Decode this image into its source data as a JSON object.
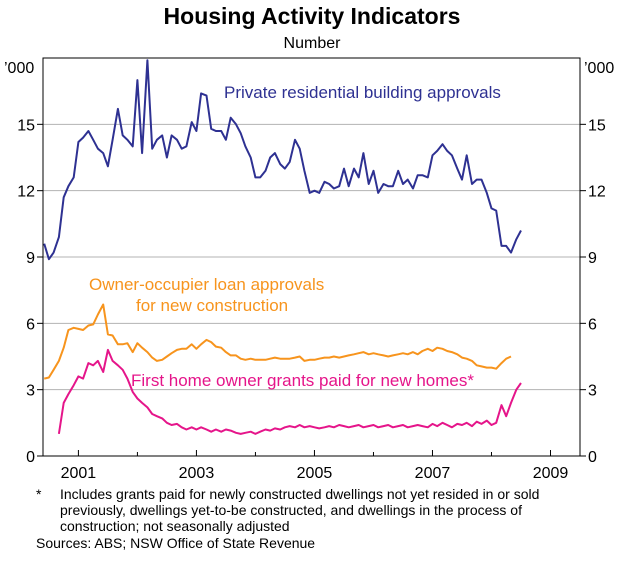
{
  "chart_data": {
    "type": "line",
    "title": "Housing Activity Indicators",
    "subtitle": "Number",
    "ylabel_left": "’000",
    "ylabel_right": "’000",
    "ylim": [
      0,
      18
    ],
    "yticks": [
      0,
      3,
      6,
      9,
      12,
      15
    ],
    "xlim": [
      2000.4,
      2009.5
    ],
    "xticks": [
      2001,
      2003,
      2005,
      2007,
      2009
    ],
    "series": [
      {
        "name": "Private residential building approvals",
        "color": "#2e3192",
        "points": [
          [
            2000.42,
            9.6
          ],
          [
            2000.5,
            8.9
          ],
          [
            2000.58,
            9.2
          ],
          [
            2000.67,
            9.9
          ],
          [
            2000.75,
            11.7
          ],
          [
            2000.83,
            12.2
          ],
          [
            2000.92,
            12.6
          ],
          [
            2001.0,
            14.2
          ],
          [
            2001.08,
            14.4
          ],
          [
            2001.17,
            14.7
          ],
          [
            2001.25,
            14.3
          ],
          [
            2001.33,
            13.9
          ],
          [
            2001.42,
            13.7
          ],
          [
            2001.5,
            13.1
          ],
          [
            2001.58,
            14.3
          ],
          [
            2001.67,
            15.7
          ],
          [
            2001.75,
            14.5
          ],
          [
            2001.83,
            14.3
          ],
          [
            2001.92,
            14.0
          ],
          [
            2002.0,
            17.0
          ],
          [
            2002.08,
            13.7
          ],
          [
            2002.17,
            17.9
          ],
          [
            2002.25,
            13.9
          ],
          [
            2002.33,
            14.3
          ],
          [
            2002.42,
            14.5
          ],
          [
            2002.5,
            13.5
          ],
          [
            2002.58,
            14.5
          ],
          [
            2002.67,
            14.3
          ],
          [
            2002.75,
            13.9
          ],
          [
            2002.83,
            14.0
          ],
          [
            2002.92,
            15.1
          ],
          [
            2003.0,
            14.7
          ],
          [
            2003.08,
            16.4
          ],
          [
            2003.17,
            16.3
          ],
          [
            2003.25,
            14.8
          ],
          [
            2003.33,
            14.7
          ],
          [
            2003.42,
            14.7
          ],
          [
            2003.5,
            14.3
          ],
          [
            2003.58,
            15.3
          ],
          [
            2003.67,
            15.0
          ],
          [
            2003.75,
            14.6
          ],
          [
            2003.83,
            14.0
          ],
          [
            2003.92,
            13.5
          ],
          [
            2004.0,
            12.6
          ],
          [
            2004.08,
            12.6
          ],
          [
            2004.17,
            12.9
          ],
          [
            2004.25,
            13.5
          ],
          [
            2004.33,
            13.7
          ],
          [
            2004.42,
            13.2
          ],
          [
            2004.5,
            13.0
          ],
          [
            2004.58,
            13.3
          ],
          [
            2004.67,
            14.3
          ],
          [
            2004.75,
            13.9
          ],
          [
            2004.83,
            12.9
          ],
          [
            2004.92,
            11.9
          ],
          [
            2005.0,
            12.0
          ],
          [
            2005.08,
            11.9
          ],
          [
            2005.17,
            12.4
          ],
          [
            2005.25,
            12.3
          ],
          [
            2005.33,
            12.1
          ],
          [
            2005.42,
            12.2
          ],
          [
            2005.5,
            13.0
          ],
          [
            2005.58,
            12.2
          ],
          [
            2005.67,
            13.0
          ],
          [
            2005.75,
            12.6
          ],
          [
            2005.83,
            13.7
          ],
          [
            2005.92,
            12.3
          ],
          [
            2006.0,
            12.9
          ],
          [
            2006.08,
            11.9
          ],
          [
            2006.17,
            12.3
          ],
          [
            2006.25,
            12.2
          ],
          [
            2006.33,
            12.2
          ],
          [
            2006.42,
            12.9
          ],
          [
            2006.5,
            12.3
          ],
          [
            2006.58,
            12.5
          ],
          [
            2006.67,
            12.1
          ],
          [
            2006.75,
            12.7
          ],
          [
            2006.83,
            12.7
          ],
          [
            2006.92,
            12.6
          ],
          [
            2007.0,
            13.6
          ],
          [
            2007.08,
            13.8
          ],
          [
            2007.17,
            14.1
          ],
          [
            2007.25,
            13.8
          ],
          [
            2007.33,
            13.6
          ],
          [
            2007.42,
            13.0
          ],
          [
            2007.5,
            12.5
          ],
          [
            2007.58,
            13.6
          ],
          [
            2007.67,
            12.3
          ],
          [
            2007.75,
            12.5
          ],
          [
            2007.83,
            12.5
          ],
          [
            2007.92,
            11.9
          ],
          [
            2008.0,
            11.2
          ],
          [
            2008.08,
            11.1
          ],
          [
            2008.17,
            9.5
          ],
          [
            2008.25,
            9.5
          ],
          [
            2008.33,
            9.2
          ],
          [
            2008.42,
            9.8
          ],
          [
            2008.5,
            10.2
          ]
        ]
      },
      {
        "name": "Owner-occupier loan approvals for new construction",
        "color": "#f7941d",
        "points": [
          [
            2000.42,
            3.5
          ],
          [
            2000.5,
            3.55
          ],
          [
            2000.58,
            3.9
          ],
          [
            2000.67,
            4.3
          ],
          [
            2000.75,
            4.9
          ],
          [
            2000.83,
            5.7
          ],
          [
            2000.92,
            5.8
          ],
          [
            2001.0,
            5.75
          ],
          [
            2001.08,
            5.7
          ],
          [
            2001.17,
            5.9
          ],
          [
            2001.25,
            5.95
          ],
          [
            2001.33,
            6.4
          ],
          [
            2001.42,
            6.85
          ],
          [
            2001.5,
            5.5
          ],
          [
            2001.58,
            5.45
          ],
          [
            2001.67,
            5.05
          ],
          [
            2001.75,
            5.05
          ],
          [
            2001.83,
            5.1
          ],
          [
            2001.92,
            4.7
          ],
          [
            2002.0,
            5.1
          ],
          [
            2002.08,
            4.9
          ],
          [
            2002.17,
            4.7
          ],
          [
            2002.25,
            4.45
          ],
          [
            2002.33,
            4.3
          ],
          [
            2002.42,
            4.35
          ],
          [
            2002.5,
            4.5
          ],
          [
            2002.58,
            4.65
          ],
          [
            2002.67,
            4.8
          ],
          [
            2002.75,
            4.85
          ],
          [
            2002.83,
            4.85
          ],
          [
            2002.92,
            5.05
          ],
          [
            2003.0,
            4.85
          ],
          [
            2003.08,
            5.05
          ],
          [
            2003.17,
            5.25
          ],
          [
            2003.25,
            5.15
          ],
          [
            2003.33,
            4.95
          ],
          [
            2003.42,
            4.9
          ],
          [
            2003.5,
            4.7
          ],
          [
            2003.58,
            4.55
          ],
          [
            2003.67,
            4.55
          ],
          [
            2003.75,
            4.4
          ],
          [
            2003.83,
            4.35
          ],
          [
            2003.92,
            4.4
          ],
          [
            2004.0,
            4.35
          ],
          [
            2004.08,
            4.35
          ],
          [
            2004.17,
            4.35
          ],
          [
            2004.25,
            4.4
          ],
          [
            2004.33,
            4.45
          ],
          [
            2004.42,
            4.4
          ],
          [
            2004.5,
            4.4
          ],
          [
            2004.58,
            4.4
          ],
          [
            2004.67,
            4.45
          ],
          [
            2004.75,
            4.5
          ],
          [
            2004.83,
            4.3
          ],
          [
            2004.92,
            4.35
          ],
          [
            2005.0,
            4.35
          ],
          [
            2005.08,
            4.4
          ],
          [
            2005.17,
            4.45
          ],
          [
            2005.25,
            4.45
          ],
          [
            2005.33,
            4.5
          ],
          [
            2005.42,
            4.45
          ],
          [
            2005.5,
            4.5
          ],
          [
            2005.58,
            4.55
          ],
          [
            2005.67,
            4.6
          ],
          [
            2005.75,
            4.65
          ],
          [
            2005.83,
            4.7
          ],
          [
            2005.92,
            4.6
          ],
          [
            2006.0,
            4.65
          ],
          [
            2006.08,
            4.6
          ],
          [
            2006.17,
            4.55
          ],
          [
            2006.25,
            4.5
          ],
          [
            2006.33,
            4.55
          ],
          [
            2006.42,
            4.6
          ],
          [
            2006.5,
            4.65
          ],
          [
            2006.58,
            4.6
          ],
          [
            2006.67,
            4.7
          ],
          [
            2006.75,
            4.6
          ],
          [
            2006.83,
            4.75
          ],
          [
            2006.92,
            4.85
          ],
          [
            2007.0,
            4.75
          ],
          [
            2007.08,
            4.9
          ],
          [
            2007.17,
            4.85
          ],
          [
            2007.25,
            4.75
          ],
          [
            2007.33,
            4.7
          ],
          [
            2007.42,
            4.6
          ],
          [
            2007.5,
            4.45
          ],
          [
            2007.58,
            4.4
          ],
          [
            2007.67,
            4.3
          ],
          [
            2007.75,
            4.1
          ],
          [
            2007.83,
            4.05
          ],
          [
            2007.92,
            4.0
          ],
          [
            2008.0,
            4.0
          ],
          [
            2008.08,
            3.95
          ],
          [
            2008.17,
            4.2
          ],
          [
            2008.25,
            4.4
          ],
          [
            2008.33,
            4.5
          ]
        ]
      },
      {
        "name": "First home owner grants paid for new homes*",
        "color": "#e5158a",
        "points": [
          [
            2000.67,
            1.0
          ],
          [
            2000.75,
            2.4
          ],
          [
            2000.83,
            2.8
          ],
          [
            2000.92,
            3.2
          ],
          [
            2001.0,
            3.6
          ],
          [
            2001.08,
            3.5
          ],
          [
            2001.17,
            4.2
          ],
          [
            2001.25,
            4.1
          ],
          [
            2001.33,
            4.3
          ],
          [
            2001.42,
            3.8
          ],
          [
            2001.5,
            4.8
          ],
          [
            2001.58,
            4.3
          ],
          [
            2001.67,
            4.1
          ],
          [
            2001.75,
            3.9
          ],
          [
            2001.83,
            3.5
          ],
          [
            2001.92,
            2.9
          ],
          [
            2002.0,
            2.6
          ],
          [
            2002.08,
            2.4
          ],
          [
            2002.17,
            2.2
          ],
          [
            2002.25,
            1.9
          ],
          [
            2002.33,
            1.8
          ],
          [
            2002.42,
            1.7
          ],
          [
            2002.5,
            1.5
          ],
          [
            2002.58,
            1.4
          ],
          [
            2002.67,
            1.45
          ],
          [
            2002.75,
            1.3
          ],
          [
            2002.83,
            1.2
          ],
          [
            2002.92,
            1.3
          ],
          [
            2003.0,
            1.2
          ],
          [
            2003.08,
            1.3
          ],
          [
            2003.17,
            1.2
          ],
          [
            2003.25,
            1.1
          ],
          [
            2003.33,
            1.2
          ],
          [
            2003.42,
            1.1
          ],
          [
            2003.5,
            1.2
          ],
          [
            2003.58,
            1.15
          ],
          [
            2003.67,
            1.05
          ],
          [
            2003.75,
            1.0
          ],
          [
            2003.83,
            1.05
          ],
          [
            2003.92,
            1.1
          ],
          [
            2004.0,
            1.0
          ],
          [
            2004.08,
            1.1
          ],
          [
            2004.17,
            1.2
          ],
          [
            2004.25,
            1.15
          ],
          [
            2004.33,
            1.25
          ],
          [
            2004.42,
            1.2
          ],
          [
            2004.5,
            1.3
          ],
          [
            2004.58,
            1.35
          ],
          [
            2004.67,
            1.3
          ],
          [
            2004.75,
            1.4
          ],
          [
            2004.83,
            1.3
          ],
          [
            2004.92,
            1.35
          ],
          [
            2005.0,
            1.3
          ],
          [
            2005.08,
            1.25
          ],
          [
            2005.17,
            1.3
          ],
          [
            2005.25,
            1.35
          ],
          [
            2005.33,
            1.3
          ],
          [
            2005.42,
            1.4
          ],
          [
            2005.5,
            1.35
          ],
          [
            2005.58,
            1.3
          ],
          [
            2005.67,
            1.35
          ],
          [
            2005.75,
            1.4
          ],
          [
            2005.83,
            1.3
          ],
          [
            2005.92,
            1.35
          ],
          [
            2006.0,
            1.4
          ],
          [
            2006.08,
            1.3
          ],
          [
            2006.17,
            1.35
          ],
          [
            2006.25,
            1.4
          ],
          [
            2006.33,
            1.3
          ],
          [
            2006.42,
            1.35
          ],
          [
            2006.5,
            1.4
          ],
          [
            2006.58,
            1.3
          ],
          [
            2006.67,
            1.35
          ],
          [
            2006.75,
            1.4
          ],
          [
            2006.83,
            1.35
          ],
          [
            2006.92,
            1.3
          ],
          [
            2007.0,
            1.45
          ],
          [
            2007.08,
            1.35
          ],
          [
            2007.17,
            1.5
          ],
          [
            2007.25,
            1.4
          ],
          [
            2007.33,
            1.3
          ],
          [
            2007.42,
            1.45
          ],
          [
            2007.5,
            1.4
          ],
          [
            2007.58,
            1.5
          ],
          [
            2007.67,
            1.35
          ],
          [
            2007.75,
            1.55
          ],
          [
            2007.83,
            1.45
          ],
          [
            2007.92,
            1.6
          ],
          [
            2008.0,
            1.4
          ],
          [
            2008.08,
            1.5
          ],
          [
            2008.17,
            2.3
          ],
          [
            2008.25,
            1.8
          ],
          [
            2008.33,
            2.4
          ],
          [
            2008.42,
            3.0
          ],
          [
            2008.5,
            3.3
          ]
        ]
      }
    ],
    "annotations": {
      "approvals": "Private residential building approvals",
      "loans_line1": "Owner-occupier loan approvals",
      "loans_line2": "for new construction",
      "grants": "First home owner grants paid for new homes*"
    },
    "grid": true
  },
  "notes": {
    "footnote_mark": "*",
    "footnote_text": "Includes grants paid for newly constructed dwellings not yet resided in or sold previously, dwellings yet-to-be constructed, and dwellings in the process of construction; not seasonally adjusted",
    "sources": "Sources: ABS; NSW Office of State Revenue"
  }
}
